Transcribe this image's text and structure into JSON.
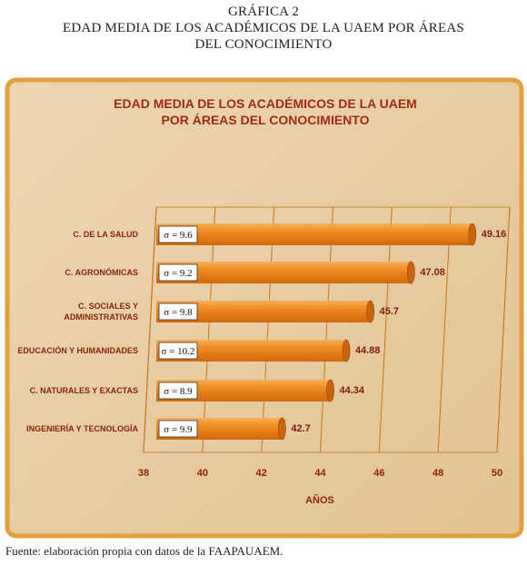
{
  "page": {
    "heading_line1": "GRÁFICA 2",
    "heading_line2": "EDAD MEDIA DE LOS ACADÉMICOS DE LA UAEM POR ÁREAS",
    "heading_line3": "DEL CONOCIMIENTO",
    "footer": "Fuente: elaboración propia con datos de la FAAPAUAEM."
  },
  "colors": {
    "panel_background": "#e8cfa6",
    "panel_border": "#e0a23a",
    "bar_fill": "#ee8a1c",
    "bar_dark": "#c8640c",
    "gridline": "#cc7a1a",
    "text_dark_red": "#8b2408"
  },
  "chart_data": {
    "type": "bar",
    "orientation": "horizontal",
    "title_line1": "EDAD MEDIA DE LOS ACADÉMICOS DE LA UAEM",
    "title_line2": "POR ÁREAS DEL CONOCIMIENTO",
    "xlabel": "AÑOS",
    "ylabel": "",
    "xlim": [
      38,
      50
    ],
    "xticks": [
      "38",
      "40",
      "42",
      "44",
      "46",
      "48",
      "50"
    ],
    "grid": true,
    "categories": [
      [
        "C. DE LA SALUD"
      ],
      [
        "C. AGRONÓMICAS"
      ],
      [
        "C. SOCIALES Y",
        "ADMINISTRATIVAS"
      ],
      [
        "EDUCACIÓN Y HUMANIDADES"
      ],
      [
        "C. NATURALES Y EXACTAS"
      ],
      [
        "INGENIERÍA Y TECNOLOGÍA"
      ]
    ],
    "values": [
      49.16,
      47.08,
      45.7,
      44.88,
      44.34,
      42.7
    ],
    "value_labels": [
      "49.16",
      "47.08",
      "45.7",
      "44.88",
      "44.34",
      "42.7"
    ],
    "annotations": [
      "σ = 9.6",
      "σ = 9.2",
      "σ = 9.8",
      "σ = 10.2",
      "σ = 8.9",
      "σ = 9.9"
    ]
  }
}
